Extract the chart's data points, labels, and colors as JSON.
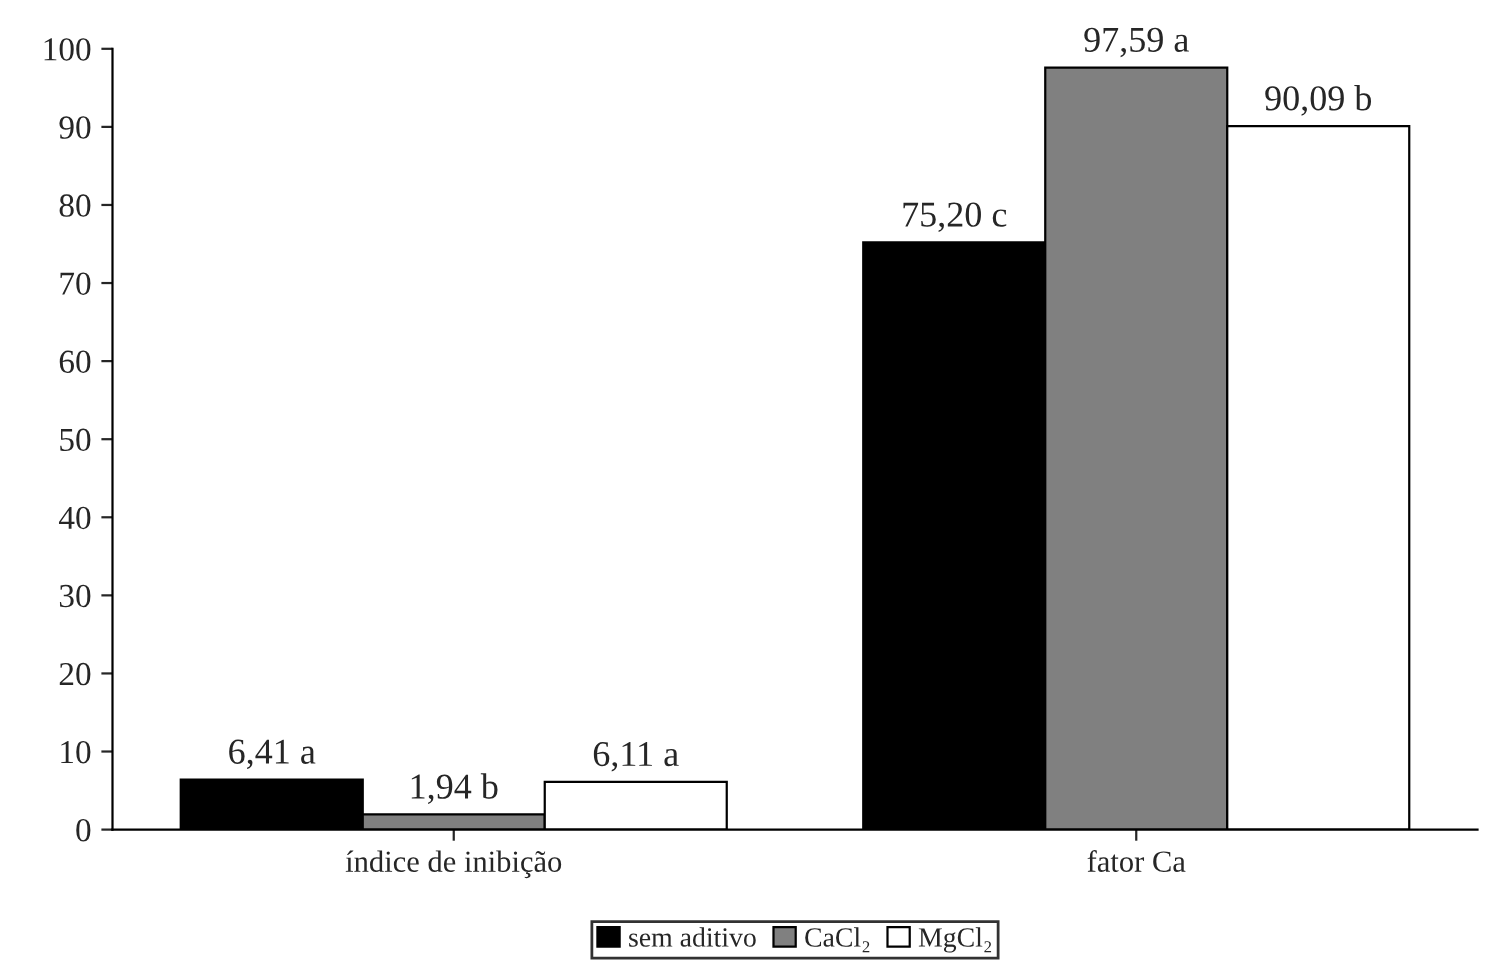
{
  "chart_data": {
    "type": "bar",
    "categories": [
      "índice de inibição",
      "fator Ca"
    ],
    "series": [
      {
        "name": "sem aditivo",
        "color": "#000000",
        "values": [
          6.41,
          75.2
        ],
        "value_labels": [
          "6,41 a",
          "75,20 c"
        ]
      },
      {
        "name": "CaCl₂",
        "color": "#808080",
        "values": [
          1.94,
          97.59
        ],
        "value_labels": [
          "1,94 b",
          "97,59 a"
        ]
      },
      {
        "name": "MgCl₂",
        "color": "#ffffff",
        "values": [
          6.11,
          90.09
        ],
        "value_labels": [
          "6,11 a",
          "90,09 b"
        ]
      }
    ],
    "ylim": [
      0,
      100
    ],
    "yticks": [
      0,
      10,
      20,
      30,
      40,
      50,
      60,
      70,
      80,
      90,
      100
    ],
    "grid": false,
    "legend": "bottom"
  }
}
